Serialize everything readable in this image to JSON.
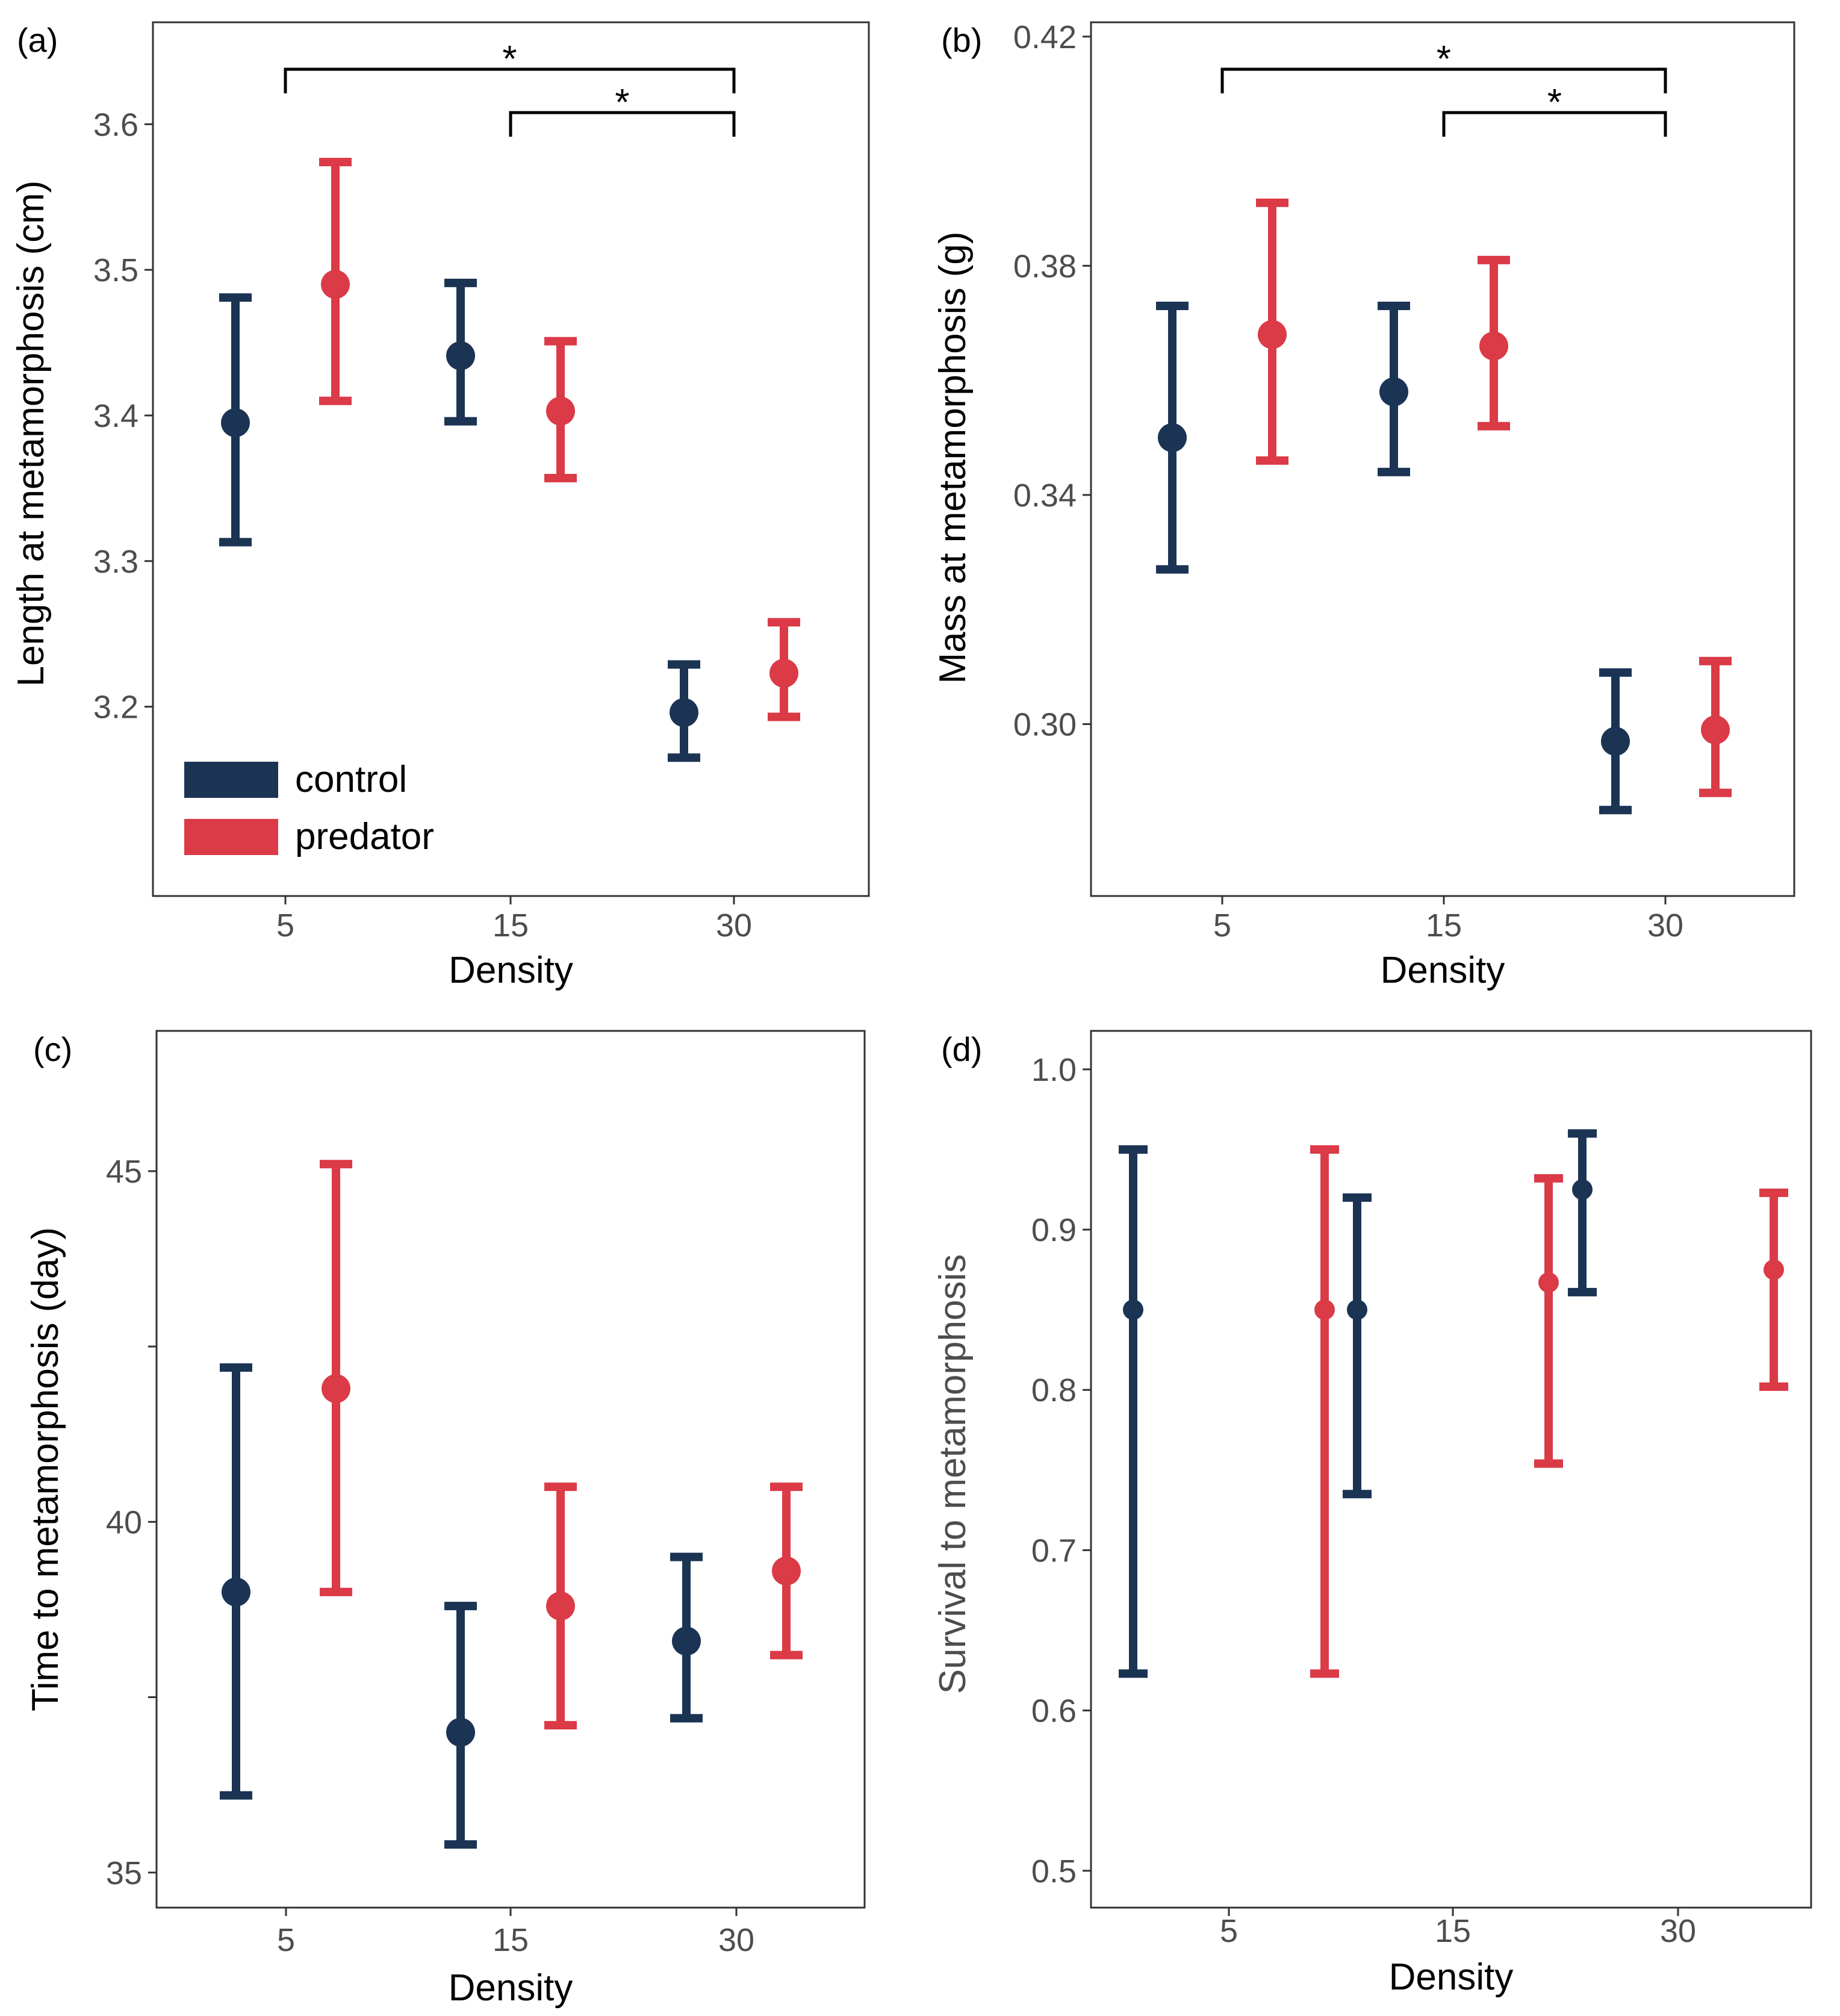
{
  "colors": {
    "control": "#1b3454",
    "predator": "#db3a47",
    "axis_text": "#4d4d4d",
    "black": "#000000"
  },
  "legend": {
    "items": [
      {
        "key": "control",
        "label": "control"
      },
      {
        "key": "predator",
        "label": "predator"
      }
    ]
  },
  "chart_data": [
    {
      "panel": "(a)",
      "type": "scatter",
      "title": "",
      "xlabel": "Density",
      "ylabel": "Length at metamorphosis (cm)",
      "categories": [
        "5",
        "15",
        "30"
      ],
      "ylim": [
        3.07,
        3.67
      ],
      "yticks": [
        3.2,
        3.3,
        3.4,
        3.5,
        3.6
      ],
      "ytick_labels": [
        "3.2",
        "3.3",
        "3.4",
        "3.5",
        "3.6"
      ],
      "series": [
        {
          "name": "control",
          "values": [
            3.395,
            3.441,
            3.196
          ],
          "lower": [
            3.313,
            3.396,
            3.165
          ],
          "upper": [
            3.481,
            3.491,
            3.229
          ]
        },
        {
          "name": "predator",
          "values": [
            3.49,
            3.403,
            3.223
          ],
          "lower": [
            3.41,
            3.357,
            3.193
          ],
          "upper": [
            3.574,
            3.451,
            3.258
          ]
        }
      ],
      "significance": [
        {
          "from": "5",
          "to": "30",
          "label": "*"
        },
        {
          "from": "15",
          "to": "30",
          "label": "*"
        }
      ]
    },
    {
      "panel": "(b)",
      "type": "scatter",
      "title": "",
      "xlabel": "Density",
      "ylabel": "Mass at metamorphosis (g)",
      "categories": [
        "5",
        "15",
        "30"
      ],
      "ylim": [
        0.27,
        0.4225
      ],
      "yticks": [
        0.3,
        0.34,
        0.38,
        0.42
      ],
      "ytick_labels": [
        "0.30",
        "0.34",
        "0.38",
        "0.42"
      ],
      "series": [
        {
          "name": "control",
          "values": [
            0.35,
            0.358,
            0.297
          ],
          "lower": [
            0.327,
            0.344,
            0.285
          ],
          "upper": [
            0.373,
            0.373,
            0.309
          ]
        },
        {
          "name": "predator",
          "values": [
            0.368,
            0.366,
            0.299
          ],
          "lower": [
            0.346,
            0.352,
            0.288
          ],
          "upper": [
            0.391,
            0.381,
            0.311
          ]
        }
      ],
      "significance": [
        {
          "from": "5",
          "to": "30",
          "label": "*"
        },
        {
          "from": "15",
          "to": "30",
          "label": "*"
        }
      ]
    },
    {
      "panel": "(c)",
      "type": "scatter",
      "title": "",
      "xlabel": "Density",
      "ylabel": "Time to metamorphosis (day)",
      "categories": [
        "5",
        "15",
        "30"
      ],
      "ylim": [
        34.5,
        47.0
      ],
      "yticks": [
        35,
        37.5,
        40,
        42.5,
        45
      ],
      "ytick_labels": [
        "35",
        "",
        "40",
        "",
        "45"
      ],
      "series": [
        {
          "name": "control",
          "values": [
            39.0,
            37.0,
            38.3
          ],
          "lower": [
            36.1,
            35.4,
            37.2
          ],
          "upper": [
            42.2,
            38.8,
            39.5
          ]
        },
        {
          "name": "predator",
          "values": [
            41.9,
            38.8,
            39.3
          ],
          "lower": [
            39.0,
            37.1,
            38.1
          ],
          "upper": [
            45.1,
            40.5,
            40.5
          ]
        }
      ],
      "significance": []
    },
    {
      "panel": "(d)",
      "type": "scatter",
      "title": "",
      "xlabel": "Density",
      "ylabel": "Survival to metamorphosis",
      "categories": [
        "5",
        "15",
        "30"
      ],
      "ylim": [
        0.477,
        1.024
      ],
      "yticks": [
        0.5,
        0.6,
        0.7,
        0.8,
        0.9,
        1.0
      ],
      "ytick_labels": [
        "0.5",
        "0.6",
        "0.7",
        "0.8",
        "0.9",
        "1.0"
      ],
      "series": [
        {
          "name": "control",
          "values": [
            0.85,
            0.85,
            0.925
          ],
          "lower": [
            0.623,
            0.735,
            0.861
          ],
          "upper": [
            0.95,
            0.92,
            0.96
          ]
        },
        {
          "name": "predator",
          "values": [
            0.85,
            0.867,
            0.875
          ],
          "lower": [
            0.623,
            0.754,
            0.802
          ],
          "upper": [
            0.95,
            0.932,
            0.923
          ]
        }
      ],
      "significance": []
    }
  ]
}
